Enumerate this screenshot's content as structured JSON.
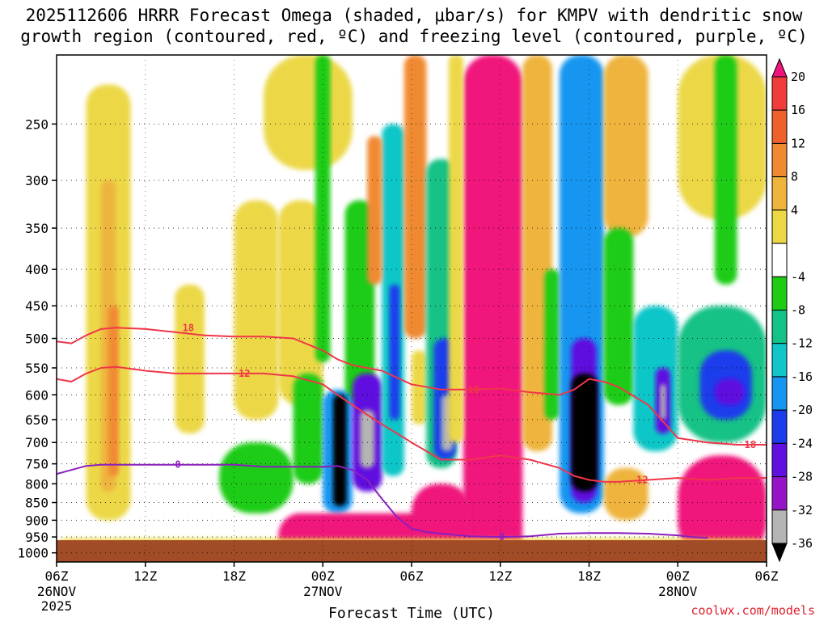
{
  "title": {
    "line1": "2025112606 HRRR Forecast Omega (shaded, μbar/s) for KMPV with dendritic snow",
    "line2": "growth region (contoured, red, ºC) and freezing level (contoured, purple, ºC)"
  },
  "credit": "coolwx.com/models",
  "chart_data": {
    "type": "heatmap",
    "title": "2025112606 HRRR Forecast Omega (shaded, μbar/s) for KMPV with dendritic snow growth region (contoured, red, ºC) and freezing level (contoured, purple, ºC)",
    "xlabel": "Forecast Time (UTC)",
    "ylabel": "",
    "x_ticks": [
      {
        "hour": 0,
        "label": "06Z",
        "date": "26NOV",
        "year": "2025"
      },
      {
        "hour": 6,
        "label": "12Z",
        "date": "",
        "year": ""
      },
      {
        "hour": 12,
        "label": "18Z",
        "date": "",
        "year": ""
      },
      {
        "hour": 18,
        "label": "00Z",
        "date": "27NOV",
        "year": ""
      },
      {
        "hour": 24,
        "label": "06Z",
        "date": "",
        "year": ""
      },
      {
        "hour": 30,
        "label": "12Z",
        "date": "",
        "year": ""
      },
      {
        "hour": 36,
        "label": "18Z",
        "date": "",
        "year": ""
      },
      {
        "hour": 42,
        "label": "00Z",
        "date": "28NOV",
        "year": ""
      },
      {
        "hour": 48,
        "label": "06Z",
        "date": "",
        "year": ""
      }
    ],
    "y_ticks": [
      "250",
      "300",
      "350",
      "400",
      "450",
      "500",
      "550",
      "600",
      "650",
      "700",
      "750",
      "800",
      "850",
      "900",
      "950",
      "1000"
    ],
    "y_tick_values": [
      250,
      300,
      350,
      400,
      450,
      500,
      550,
      600,
      650,
      700,
      750,
      800,
      850,
      900,
      950,
      1000
    ],
    "xlim_hours": [
      0,
      48
    ],
    "ylim_hpa": [
      200,
      1030
    ],
    "grid": true,
    "colorbar": {
      "labels": [
        "20",
        "16",
        "12",
        "8",
        "4",
        "-4",
        "-8",
        "-12",
        "-16",
        "-20",
        "-24",
        "-28",
        "-32",
        "-36"
      ],
      "bins": [
        {
          "lo": 24,
          "hi": 99,
          "color": "#f0147c"
        },
        {
          "lo": 20,
          "hi": 24,
          "color": "#f23c3c"
        },
        {
          "lo": 16,
          "hi": 20,
          "color": "#f0602c"
        },
        {
          "lo": 12,
          "hi": 16,
          "color": "#f08a30"
        },
        {
          "lo": 8,
          "hi": 12,
          "color": "#eeb43c"
        },
        {
          "lo": 4,
          "hi": 8,
          "color": "#ecd846"
        },
        {
          "lo": -4,
          "hi": 4,
          "color": "#ffffff"
        },
        {
          "lo": -8,
          "hi": -4,
          "color": "#1ecc14"
        },
        {
          "lo": -12,
          "hi": -8,
          "color": "#12c286"
        },
        {
          "lo": -16,
          "hi": -12,
          "color": "#10c6c8"
        },
        {
          "lo": -20,
          "hi": -16,
          "color": "#1696f0"
        },
        {
          "lo": -24,
          "hi": -20,
          "color": "#1c3cec"
        },
        {
          "lo": -28,
          "hi": -24,
          "color": "#6010e0"
        },
        {
          "lo": -32,
          "hi": -28,
          "color": "#9614c8"
        },
        {
          "lo": -36,
          "hi": -32,
          "color": "#b4b4b4"
        },
        {
          "lo": -99,
          "hi": -36,
          "color": "#000000"
        }
      ]
    },
    "omega_cells": [
      {
        "x": [
          0,
          48
        ],
        "y": [
          200,
          1030
        ],
        "v": 0
      },
      {
        "x": [
          2,
          5
        ],
        "y": [
          220,
          900
        ],
        "v": 6
      },
      {
        "x": [
          3,
          4
        ],
        "y": [
          300,
          820
        ],
        "v": 10
      },
      {
        "x": [
          3.5,
          4.2
        ],
        "y": [
          450,
          780
        ],
        "v": 14
      },
      {
        "x": [
          8,
          10
        ],
        "y": [
          420,
          680
        ],
        "v": 6
      },
      {
        "x": [
          12,
          15
        ],
        "y": [
          320,
          650
        ],
        "v": 5
      },
      {
        "x": [
          15,
          18
        ],
        "y": [
          320,
          620
        ],
        "v": 5
      },
      {
        "x": [
          14,
          20
        ],
        "y": [
          200,
          290
        ],
        "v": 5
      },
      {
        "x": [
          17.5,
          18.5
        ],
        "y": [
          200,
          540
        ],
        "v": -6
      },
      {
        "x": [
          16,
          18
        ],
        "y": [
          560,
          800
        ],
        "v": -6
      },
      {
        "x": [
          11,
          16
        ],
        "y": [
          700,
          880
        ],
        "v": -6
      },
      {
        "x": [
          19.5,
          21.5
        ],
        "y": [
          320,
          620
        ],
        "v": -6
      },
      {
        "x": [
          18,
          20
        ],
        "y": [
          590,
          880
        ],
        "v": -18
      },
      {
        "x": [
          18.7,
          19.6
        ],
        "y": [
          600,
          860
        ],
        "v": -40
      },
      {
        "x": [
          20,
          22
        ],
        "y": [
          560,
          820
        ],
        "v": -26
      },
      {
        "x": [
          20.5,
          21.5
        ],
        "y": [
          630,
          760
        ],
        "v": -34
      },
      {
        "x": [
          22,
          23.5
        ],
        "y": [
          250,
          780
        ],
        "v": -16
      },
      {
        "x": [
          22.5,
          23.2
        ],
        "y": [
          420,
          650
        ],
        "v": -24
      },
      {
        "x": [
          21,
          22
        ],
        "y": [
          260,
          420
        ],
        "v": 12
      },
      {
        "x": [
          23.5,
          25
        ],
        "y": [
          200,
          500
        ],
        "v": 12
      },
      {
        "x": [
          24,
          25
        ],
        "y": [
          520,
          660
        ],
        "v": 4
      },
      {
        "x": [
          25,
          27
        ],
        "y": [
          280,
          760
        ],
        "v": -10
      },
      {
        "x": [
          25.5,
          27
        ],
        "y": [
          500,
          740
        ],
        "v": -22
      },
      {
        "x": [
          26,
          26.8
        ],
        "y": [
          600,
          720
        ],
        "v": -34
      },
      {
        "x": [
          27.5,
          31.5
        ],
        "y": [
          200,
          1030
        ],
        "v": 28
      },
      {
        "x": [
          26.5,
          27.5
        ],
        "y": [
          200,
          700
        ],
        "v": 6
      },
      {
        "x": [
          31.5,
          33.5
        ],
        "y": [
          200,
          720
        ],
        "v": 10
      },
      {
        "x": [
          33,
          34
        ],
        "y": [
          400,
          650
        ],
        "v": -8
      },
      {
        "x": [
          34,
          37
        ],
        "y": [
          200,
          880
        ],
        "v": -18
      },
      {
        "x": [
          34.8,
          36.5
        ],
        "y": [
          500,
          850
        ],
        "v": -26
      },
      {
        "x": [
          34.8,
          36.6
        ],
        "y": [
          560,
          820
        ],
        "v": -40
      },
      {
        "x": [
          37,
          40
        ],
        "y": [
          200,
          360
        ],
        "v": 8
      },
      {
        "x": [
          37,
          39
        ],
        "y": [
          350,
          620
        ],
        "v": -8
      },
      {
        "x": [
          39,
          42
        ],
        "y": [
          450,
          720
        ],
        "v": -14
      },
      {
        "x": [
          40.5,
          41.5
        ],
        "y": [
          550,
          680
        ],
        "v": -28
      },
      {
        "x": [
          40.8,
          41.2
        ],
        "y": [
          580,
          650
        ],
        "v": -34
      },
      {
        "x": [
          42,
          48
        ],
        "y": [
          200,
          340
        ],
        "v": 5
      },
      {
        "x": [
          44.5,
          46
        ],
        "y": [
          200,
          420
        ],
        "v": -8
      },
      {
        "x": [
          42,
          48
        ],
        "y": [
          450,
          700
        ],
        "v": -10
      },
      {
        "x": [
          43.5,
          47
        ],
        "y": [
          520,
          650
        ],
        "v": -22
      },
      {
        "x": [
          44.5,
          46.5
        ],
        "y": [
          570,
          620
        ],
        "v": -28
      },
      {
        "x": [
          42,
          48
        ],
        "y": [
          730,
          1030
        ],
        "v": 26
      },
      {
        "x": [
          37,
          40
        ],
        "y": [
          760,
          900
        ],
        "v": 10
      },
      {
        "x": [
          15,
          27
        ],
        "y": [
          880,
          1030
        ],
        "v": 26
      },
      {
        "x": [
          24,
          28
        ],
        "y": [
          800,
          1030
        ],
        "v": 30
      },
      {
        "x": [
          0,
          48
        ],
        "y": [
          955,
          1030
        ],
        "v": 4
      }
    ],
    "series": [
      {
        "name": "-18",
        "color": "#f0364a",
        "x": [
          0,
          1,
          2,
          3,
          4,
          6,
          8,
          10,
          12,
          14,
          16,
          18,
          19,
          20,
          22,
          24,
          26,
          28,
          30,
          32,
          34,
          35,
          36,
          37,
          38,
          40,
          42,
          44,
          46,
          48
        ],
        "y": [
          505,
          508,
          495,
          485,
          483,
          485,
          490,
          495,
          497,
          497,
          500,
          520,
          535,
          545,
          555,
          580,
          590,
          590,
          588,
          595,
          600,
          590,
          570,
          575,
          585,
          620,
          690,
          700,
          705,
          705
        ]
      },
      {
        "name": "-12",
        "color": "#f0364a",
        "x": [
          0,
          1,
          2,
          3,
          4,
          6,
          8,
          10,
          12,
          14,
          16,
          18,
          19,
          20,
          21,
          22,
          24,
          26,
          28,
          30,
          32,
          34,
          35,
          36,
          37,
          38,
          40,
          42,
          44,
          46,
          48
        ],
        "y": [
          570,
          575,
          560,
          550,
          548,
          555,
          560,
          560,
          560,
          560,
          565,
          580,
          600,
          620,
          640,
          660,
          700,
          740,
          740,
          730,
          740,
          760,
          780,
          790,
          795,
          795,
          790,
          785,
          790,
          785,
          785
        ]
      },
      {
        "name": "0",
        "color": "#8c1ebe",
        "x": [
          0,
          1,
          2,
          3,
          5,
          8,
          10,
          12,
          14,
          16,
          18,
          19,
          20,
          21,
          22,
          23,
          24,
          25,
          26,
          28,
          30,
          32,
          34,
          36,
          38,
          40,
          42,
          43,
          44
        ],
        "y": [
          775,
          765,
          755,
          752,
          752,
          752,
          752,
          752,
          757,
          757,
          757,
          755,
          765,
          790,
          840,
          890,
          925,
          935,
          940,
          948,
          950,
          948,
          940,
          938,
          938,
          940,
          945,
          950,
          953
        ]
      }
    ],
    "contour_labels": [
      {
        "text": "18",
        "x": 8.9,
        "y": 483,
        "color": "#f0364a"
      },
      {
        "text": "12",
        "x": 12.7,
        "y": 560,
        "color": "#f0364a"
      },
      {
        "text": "18",
        "x": 28.2,
        "y": 590,
        "color": "#f0364a"
      },
      {
        "text": "12",
        "x": 39.6,
        "y": 790,
        "color": "#f0364a"
      },
      {
        "text": "18",
        "x": 46.9,
        "y": 705,
        "color": "#f0364a"
      },
      {
        "text": "0",
        "x": 8.2,
        "y": 752,
        "color": "#8c1ebe"
      },
      {
        "text": "0",
        "x": 30.1,
        "y": 950,
        "color": "#8c1ebe"
      }
    ],
    "ground": {
      "from_hpa": 960,
      "color": "#a14c26"
    }
  }
}
